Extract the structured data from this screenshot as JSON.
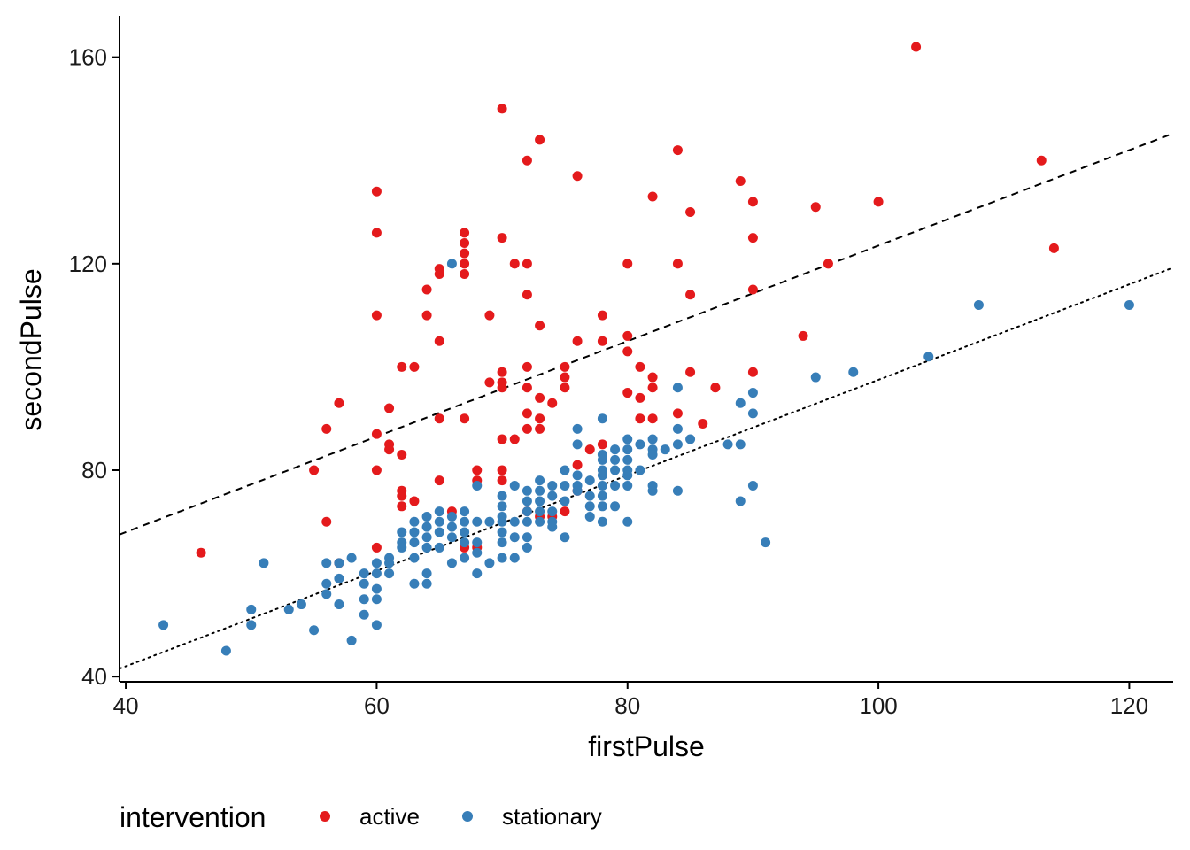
{
  "chart_data": {
    "type": "scatter",
    "title": "",
    "xlabel": "firstPulse",
    "ylabel": "secondPulse",
    "xlim": [
      39.5,
      123.5
    ],
    "ylim": [
      39,
      168
    ],
    "x_ticks": [
      40,
      60,
      80,
      100,
      120
    ],
    "y_ticks": [
      40,
      80,
      120,
      160
    ],
    "x_tick_labels": [
      "40",
      "60",
      "80",
      "100",
      "120"
    ],
    "y_tick_labels": [
      "40",
      "80",
      "120",
      "160"
    ],
    "grid": false,
    "legend": {
      "title": "intervention",
      "position": "bottom"
    },
    "series": [
      {
        "name": "active",
        "color": "#e41a1c",
        "points": [
          [
            46,
            64
          ],
          [
            55,
            80
          ],
          [
            56,
            88
          ],
          [
            56,
            70
          ],
          [
            57,
            93
          ],
          [
            57,
            62
          ],
          [
            60,
            134
          ],
          [
            60,
            126
          ],
          [
            60,
            110
          ],
          [
            60,
            87
          ],
          [
            60,
            80
          ],
          [
            60,
            65
          ],
          [
            61,
            92
          ],
          [
            61,
            85
          ],
          [
            61,
            84
          ],
          [
            62,
            100
          ],
          [
            62,
            83
          ],
          [
            62,
            76
          ],
          [
            62,
            75
          ],
          [
            62,
            73
          ],
          [
            63,
            100
          ],
          [
            63,
            74
          ],
          [
            64,
            115
          ],
          [
            64,
            110
          ],
          [
            65,
            119
          ],
          [
            65,
            118
          ],
          [
            65,
            105
          ],
          [
            65,
            90
          ],
          [
            65,
            78
          ],
          [
            66,
            72
          ],
          [
            67,
            126
          ],
          [
            67,
            124
          ],
          [
            67,
            122
          ],
          [
            67,
            120
          ],
          [
            67,
            118
          ],
          [
            67,
            90
          ],
          [
            67,
            65
          ],
          [
            68,
            80
          ],
          [
            68,
            78
          ],
          [
            68,
            65
          ],
          [
            69,
            110
          ],
          [
            69,
            97
          ],
          [
            70,
            150
          ],
          [
            70,
            125
          ],
          [
            70,
            99
          ],
          [
            70,
            97
          ],
          [
            70,
            96
          ],
          [
            70,
            86
          ],
          [
            70,
            80
          ],
          [
            70,
            78
          ],
          [
            71,
            120
          ],
          [
            71,
            86
          ],
          [
            72,
            140
          ],
          [
            72,
            120
          ],
          [
            72,
            114
          ],
          [
            72,
            100
          ],
          [
            72,
            96
          ],
          [
            72,
            91
          ],
          [
            72,
            88
          ],
          [
            72,
            72
          ],
          [
            73,
            144
          ],
          [
            73,
            108
          ],
          [
            73,
            94
          ],
          [
            73,
            90
          ],
          [
            73,
            88
          ],
          [
            73,
            71
          ],
          [
            74,
            93
          ],
          [
            74,
            71
          ],
          [
            75,
            100
          ],
          [
            75,
            98
          ],
          [
            75,
            96
          ],
          [
            75,
            72
          ],
          [
            76,
            137
          ],
          [
            76,
            105
          ],
          [
            76,
            81
          ],
          [
            76,
            76
          ],
          [
            77,
            84
          ],
          [
            78,
            110
          ],
          [
            78,
            105
          ],
          [
            78,
            85
          ],
          [
            80,
            120
          ],
          [
            80,
            106
          ],
          [
            80,
            103
          ],
          [
            80,
            95
          ],
          [
            81,
            100
          ],
          [
            81,
            94
          ],
          [
            81,
            90
          ],
          [
            82,
            133
          ],
          [
            82,
            98
          ],
          [
            82,
            96
          ],
          [
            82,
            90
          ],
          [
            84,
            142
          ],
          [
            84,
            120
          ],
          [
            84,
            91
          ],
          [
            85,
            130
          ],
          [
            85,
            114
          ],
          [
            85,
            99
          ],
          [
            86,
            89
          ],
          [
            87,
            96
          ],
          [
            89,
            136
          ],
          [
            90,
            132
          ],
          [
            90,
            125
          ],
          [
            90,
            115
          ],
          [
            90,
            99
          ],
          [
            94,
            106
          ],
          [
            95,
            131
          ],
          [
            96,
            120
          ],
          [
            100,
            132
          ],
          [
            103,
            162
          ],
          [
            113,
            140
          ],
          [
            114,
            123
          ]
        ]
      },
      {
        "name": "stationary",
        "color": "#377eb8",
        "points": [
          [
            43,
            50
          ],
          [
            48,
            45
          ],
          [
            50,
            53
          ],
          [
            50,
            50
          ],
          [
            51,
            62
          ],
          [
            53,
            53
          ],
          [
            54,
            54
          ],
          [
            55,
            49
          ],
          [
            56,
            62
          ],
          [
            56,
            58
          ],
          [
            56,
            56
          ],
          [
            57,
            62
          ],
          [
            57,
            59
          ],
          [
            57,
            54
          ],
          [
            58,
            63
          ],
          [
            58,
            47
          ],
          [
            59,
            60
          ],
          [
            59,
            58
          ],
          [
            59,
            55
          ],
          [
            59,
            52
          ],
          [
            60,
            62
          ],
          [
            60,
            60
          ],
          [
            60,
            57
          ],
          [
            60,
            55
          ],
          [
            60,
            50
          ],
          [
            61,
            63
          ],
          [
            61,
            62
          ],
          [
            61,
            60
          ],
          [
            62,
            68
          ],
          [
            62,
            66
          ],
          [
            62,
            65
          ],
          [
            63,
            70
          ],
          [
            63,
            68
          ],
          [
            63,
            66
          ],
          [
            63,
            63
          ],
          [
            63,
            58
          ],
          [
            64,
            71
          ],
          [
            64,
            69
          ],
          [
            64,
            67
          ],
          [
            64,
            65
          ],
          [
            64,
            60
          ],
          [
            64,
            58
          ],
          [
            65,
            72
          ],
          [
            65,
            70
          ],
          [
            65,
            68
          ],
          [
            65,
            65
          ],
          [
            66,
            120
          ],
          [
            66,
            71
          ],
          [
            66,
            69
          ],
          [
            66,
            67
          ],
          [
            66,
            62
          ],
          [
            67,
            72
          ],
          [
            67,
            70
          ],
          [
            67,
            68
          ],
          [
            67,
            66
          ],
          [
            67,
            63
          ],
          [
            68,
            77
          ],
          [
            68,
            70
          ],
          [
            68,
            66
          ],
          [
            68,
            64
          ],
          [
            68,
            60
          ],
          [
            69,
            70
          ],
          [
            69,
            62
          ],
          [
            70,
            75
          ],
          [
            70,
            73
          ],
          [
            70,
            71
          ],
          [
            70,
            70
          ],
          [
            70,
            68
          ],
          [
            70,
            66
          ],
          [
            70,
            63
          ],
          [
            71,
            77
          ],
          [
            71,
            70
          ],
          [
            71,
            67
          ],
          [
            71,
            63
          ],
          [
            72,
            76
          ],
          [
            72,
            74
          ],
          [
            72,
            72
          ],
          [
            72,
            70
          ],
          [
            72,
            67
          ],
          [
            72,
            65
          ],
          [
            73,
            78
          ],
          [
            73,
            76
          ],
          [
            73,
            74
          ],
          [
            73,
            72
          ],
          [
            73,
            70
          ],
          [
            74,
            77
          ],
          [
            74,
            75
          ],
          [
            74,
            72
          ],
          [
            74,
            70
          ],
          [
            74,
            69
          ],
          [
            75,
            80
          ],
          [
            75,
            77
          ],
          [
            75,
            74
          ],
          [
            75,
            67
          ],
          [
            76,
            88
          ],
          [
            76,
            85
          ],
          [
            76,
            79
          ],
          [
            76,
            77
          ],
          [
            76,
            76
          ],
          [
            77,
            78
          ],
          [
            77,
            75
          ],
          [
            77,
            73
          ],
          [
            77,
            71
          ],
          [
            78,
            90
          ],
          [
            78,
            83
          ],
          [
            78,
            82
          ],
          [
            78,
            80
          ],
          [
            78,
            79
          ],
          [
            78,
            77
          ],
          [
            78,
            75
          ],
          [
            78,
            73
          ],
          [
            78,
            70
          ],
          [
            79,
            84
          ],
          [
            79,
            82
          ],
          [
            79,
            80
          ],
          [
            79,
            77
          ],
          [
            79,
            73
          ],
          [
            80,
            86
          ],
          [
            80,
            84
          ],
          [
            80,
            82
          ],
          [
            80,
            80
          ],
          [
            80,
            79
          ],
          [
            80,
            77
          ],
          [
            80,
            70
          ],
          [
            81,
            85
          ],
          [
            81,
            80
          ],
          [
            82,
            86
          ],
          [
            82,
            84
          ],
          [
            82,
            83
          ],
          [
            82,
            77
          ],
          [
            82,
            76
          ],
          [
            83,
            84
          ],
          [
            84,
            96
          ],
          [
            84,
            88
          ],
          [
            84,
            85
          ],
          [
            84,
            76
          ],
          [
            85,
            86
          ],
          [
            88,
            85
          ],
          [
            89,
            93
          ],
          [
            89,
            85
          ],
          [
            89,
            74
          ],
          [
            90,
            95
          ],
          [
            90,
            91
          ],
          [
            90,
            77
          ],
          [
            91,
            66
          ],
          [
            95,
            98
          ],
          [
            98,
            99
          ],
          [
            104,
            102
          ],
          [
            108,
            112
          ],
          [
            120,
            112
          ]
        ]
      }
    ],
    "reference_lines": [
      {
        "style": "dashed",
        "slope": 0.925,
        "intercept": 31
      },
      {
        "style": "dotted",
        "slope": 0.925,
        "intercept": 5
      }
    ]
  }
}
